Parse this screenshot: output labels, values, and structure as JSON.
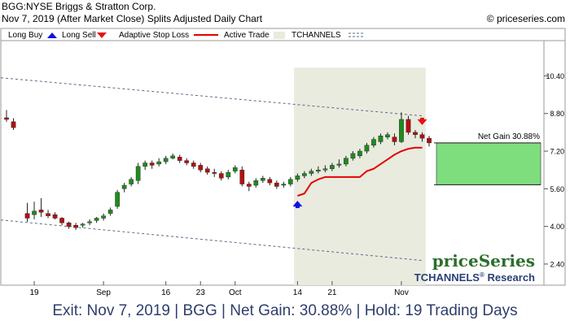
{
  "header": {
    "title": "BGG:NYSE Briggs & Stratton Corp.",
    "subtitle": "Nov 7, 2019 (After Market Close)  Splits Adjusted Daily Chart",
    "copyright": "© priceseries.com"
  },
  "legend": {
    "long_buy": "Long Buy",
    "long_sell": "Long Sell",
    "adaptive_stop": "Adaptive Stop Loss",
    "active_trade": "Active Trade",
    "tchannels": "TCHANNELS"
  },
  "brand": {
    "name": "priceSeries",
    "tagline": "TCHANNELS",
    "tagline_sup": "®",
    "tagline_tail": " Research"
  },
  "footer": {
    "text": "Exit: Nov 7, 2019 | BGG | Net Gain: 30.88% | Hold: 19 Trading Days"
  },
  "colors": {
    "up": "#1e8c1e",
    "down": "#b21010",
    "stop": "#e60000",
    "buy_arrow": "#1010e6",
    "sell_arrow": "#e61010",
    "active": "#e9ebdf",
    "gain": "#7ede7e",
    "channel": "#5a6a86",
    "brand": "#2d6e2d",
    "brand_tag": "#2a3f77"
  },
  "chart_data": {
    "type": "candlestick",
    "y_ticks": [
      2.4,
      4.0,
      5.6,
      7.2,
      8.8,
      10.4
    ],
    "y_tick_labels": [
      "2.40",
      "4.00",
      "5.60",
      "7.20",
      "8.80",
      "10.40"
    ],
    "ylim": [
      1.5,
      11.9
    ],
    "x_ticks": [
      {
        "index": 4,
        "label": "19"
      },
      {
        "index": 14,
        "label": "Sep"
      },
      {
        "index": 23,
        "label": "16"
      },
      {
        "index": 28,
        "label": "23"
      },
      {
        "index": 33,
        "label": "Oct"
      },
      {
        "index": 42,
        "label": "14"
      },
      {
        "index": 47,
        "label": "21"
      },
      {
        "index": 57,
        "label": "Nov"
      }
    ],
    "candles": [
      [
        8.62,
        8.55,
        8.95,
        8.45
      ],
      [
        8.45,
        8.2,
        8.6,
        8.1
      ],
      null,
      [
        4.55,
        4.35,
        5.0,
        4.2
      ],
      [
        4.5,
        4.65,
        5.05,
        4.3
      ],
      [
        4.7,
        4.6,
        5.2,
        4.4
      ],
      [
        4.55,
        4.45,
        4.7,
        4.35
      ],
      [
        4.5,
        4.35,
        4.6,
        4.3
      ],
      [
        4.35,
        4.15,
        4.4,
        4.05
      ],
      [
        4.15,
        4.0,
        4.2,
        3.9
      ],
      [
        4.05,
        3.95,
        4.15,
        3.85
      ],
      [
        4.05,
        4.1,
        4.15,
        3.95
      ],
      [
        4.15,
        4.2,
        4.3,
        4.05
      ],
      [
        4.25,
        4.35,
        4.4,
        4.15
      ],
      [
        4.35,
        4.45,
        4.55,
        4.25
      ],
      [
        4.55,
        4.7,
        4.8,
        4.45
      ],
      [
        4.85,
        5.45,
        5.55,
        4.75
      ],
      [
        5.6,
        5.75,
        5.85,
        5.45
      ],
      [
        5.8,
        6.0,
        6.1,
        5.7
      ],
      [
        5.95,
        6.55,
        6.7,
        5.8
      ],
      [
        6.55,
        6.7,
        6.8,
        6.4
      ],
      [
        6.7,
        6.6,
        6.8,
        6.45
      ],
      [
        6.65,
        6.75,
        6.9,
        6.55
      ],
      [
        6.75,
        6.9,
        7.0,
        6.65
      ],
      [
        6.9,
        7.0,
        7.1,
        6.85
      ],
      [
        6.95,
        6.8,
        7.05,
        6.7
      ],
      [
        6.8,
        6.7,
        6.9,
        6.6
      ],
      [
        6.7,
        6.55,
        6.8,
        6.45
      ],
      [
        6.6,
        6.4,
        6.7,
        6.3
      ],
      [
        6.45,
        6.3,
        6.55,
        6.2
      ],
      [
        6.3,
        6.25,
        6.45,
        6.1
      ],
      [
        6.25,
        6.05,
        6.35,
        5.95
      ],
      [
        6.1,
        6.3,
        6.4,
        6.0
      ],
      [
        6.35,
        6.5,
        6.6,
        6.25
      ],
      [
        6.4,
        5.8,
        6.55,
        5.7
      ],
      [
        5.8,
        5.7,
        5.9,
        5.5
      ],
      [
        5.75,
        5.95,
        6.05,
        5.65
      ],
      [
        5.95,
        6.05,
        6.15,
        5.85
      ],
      [
        6.0,
        5.85,
        6.1,
        5.75
      ],
      [
        5.85,
        5.7,
        5.95,
        5.6
      ],
      [
        5.75,
        5.8,
        5.9,
        5.65
      ],
      [
        5.8,
        6.0,
        6.1,
        5.7
      ],
      [
        6.0,
        6.15,
        6.25,
        5.9
      ],
      [
        6.15,
        6.25,
        6.35,
        6.05
      ],
      [
        6.25,
        6.35,
        6.45,
        6.15
      ],
      [
        6.35,
        6.4,
        6.55,
        6.25
      ],
      [
        6.4,
        6.45,
        6.6,
        6.3
      ],
      [
        6.45,
        6.6,
        6.7,
        6.35
      ],
      [
        6.6,
        6.65,
        6.85,
        6.5
      ],
      [
        6.65,
        6.9,
        7.0,
        6.55
      ],
      [
        6.9,
        7.1,
        7.2,
        6.8
      ],
      [
        7.0,
        7.2,
        7.3,
        6.9
      ],
      [
        7.2,
        7.45,
        7.55,
        7.1
      ],
      [
        7.45,
        7.7,
        7.8,
        7.35
      ],
      [
        7.6,
        7.85,
        7.95,
        7.5
      ],
      [
        7.8,
        7.9,
        8.0,
        7.7
      ],
      [
        7.8,
        7.6,
        7.95,
        7.45
      ],
      [
        7.6,
        8.55,
        8.85,
        7.55
      ],
      [
        8.55,
        8.0,
        8.7,
        7.9
      ],
      [
        8.0,
        7.9,
        8.1,
        7.75
      ],
      [
        7.9,
        7.75,
        8.0,
        7.6
      ],
      [
        7.75,
        7.55,
        7.85,
        7.4
      ]
    ],
    "stop_line": [
      [
        42,
        5.3
      ],
      [
        43,
        5.4
      ],
      [
        44,
        5.85
      ],
      [
        45,
        6.0
      ],
      [
        46,
        6.1
      ],
      [
        47,
        6.1
      ],
      [
        48,
        6.1
      ],
      [
        49,
        6.1
      ],
      [
        50,
        6.1
      ],
      [
        51,
        6.1
      ],
      [
        52,
        6.35
      ],
      [
        53,
        6.45
      ],
      [
        54,
        6.65
      ],
      [
        55,
        6.85
      ],
      [
        56,
        7.05
      ],
      [
        57,
        7.2
      ],
      [
        58,
        7.3
      ],
      [
        59,
        7.35
      ],
      [
        60,
        7.35
      ]
    ],
    "channel_upper": [
      [
        0,
        10.3
      ],
      [
        60,
        8.7
      ]
    ],
    "channel_lower": [
      [
        0,
        4.25
      ],
      [
        60,
        2.55
      ]
    ],
    "active_trade": {
      "start_index": 41.5,
      "end_index": 60.5,
      "top_value": 10.75
    },
    "buy_marker": {
      "index": 42,
      "value": 4.95
    },
    "sell_marker": {
      "index": 60,
      "value": 8.45
    },
    "gain_box": {
      "top_value": 7.55,
      "bottom_value": 5.77,
      "label": "Net Gain 30.88%"
    }
  }
}
